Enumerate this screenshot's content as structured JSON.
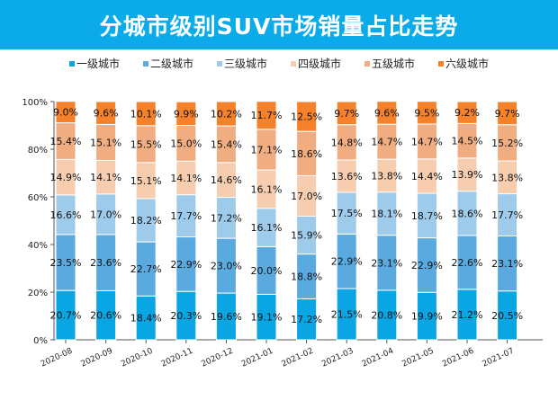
{
  "chart_data": {
    "type": "bar",
    "stacked": true,
    "title": "分城市级别SUV市场销量占比走势",
    "categories": [
      "2020-08",
      "2020-09",
      "2020-10",
      "2020-11",
      "2020-12",
      "2021-01",
      "2021-02",
      "2021-03",
      "2021-04",
      "2021-05",
      "2021-06",
      "2021-07"
    ],
    "series": [
      {
        "name": "一级城市",
        "color": "#0aa6e4",
        "values": [
          20.7,
          20.6,
          18.4,
          20.3,
          19.6,
          19.1,
          17.2,
          21.5,
          20.8,
          19.9,
          21.2,
          20.5
        ]
      },
      {
        "name": "二级城市",
        "color": "#5aaae0",
        "values": [
          23.5,
          23.6,
          22.7,
          22.9,
          23.0,
          20.0,
          18.8,
          22.9,
          23.1,
          22.9,
          22.6,
          23.1
        ]
      },
      {
        "name": "三级城市",
        "color": "#9fcbea",
        "values": [
          16.6,
          17.0,
          18.2,
          17.7,
          17.2,
          16.1,
          15.9,
          17.5,
          18.1,
          18.7,
          18.6,
          17.7
        ]
      },
      {
        "name": "四级城市",
        "color": "#f7cdb0",
        "values": [
          14.9,
          14.1,
          15.1,
          14.1,
          14.6,
          16.1,
          17.0,
          13.6,
          13.8,
          14.4,
          13.9,
          13.8
        ]
      },
      {
        "name": "五级城市",
        "color": "#f0ad82",
        "values": [
          15.4,
          15.1,
          15.5,
          15.0,
          15.4,
          17.1,
          18.6,
          14.8,
          14.7,
          14.7,
          14.5,
          15.2
        ]
      },
      {
        "name": "六级城市",
        "color": "#f5822a",
        "values": [
          9.0,
          9.6,
          10.1,
          9.9,
          10.2,
          11.7,
          12.5,
          9.7,
          9.6,
          9.5,
          9.2,
          9.7
        ]
      }
    ],
    "ylim": [
      0,
      100
    ],
    "yticks": [
      "0%",
      "20%",
      "40%",
      "60%",
      "80%",
      "100%"
    ],
    "legend_position": "top",
    "grid": false
  }
}
